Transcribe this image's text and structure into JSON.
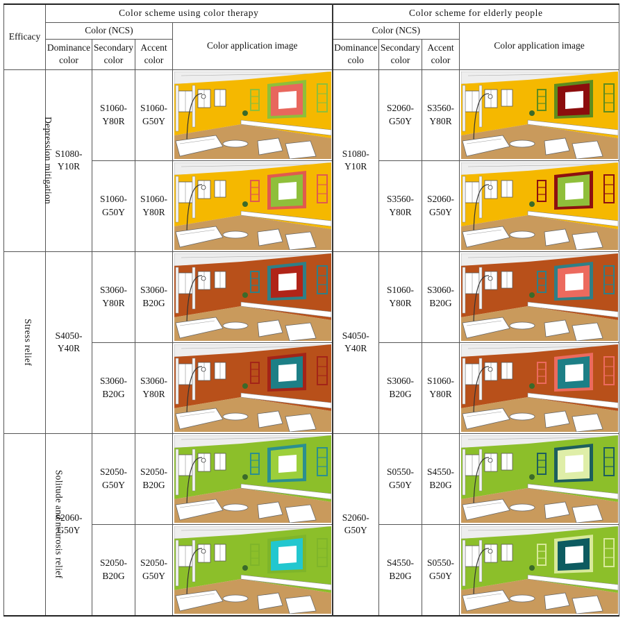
{
  "header": {
    "efficacy": "Efficacy",
    "therapy_group": "Color scheme using color therapy",
    "elderly_group": "Color scheme for elderly people",
    "ncs": "Color (NCS)",
    "app_image": "Color application image",
    "dominance_therapy": "Dominance\ncolor",
    "dominance_elderly": "Dominance\ncolo",
    "secondary": "Secondary\ncolor",
    "accent": "Accent\ncolor"
  },
  "rows": [
    {
      "efficacy": "Depression mitigation",
      "therapy_dominance": "S1080-\nY10R",
      "elderly_dominance": "S1080-\nY10R",
      "subs": [
        {
          "therapy_secondary": "S1060-\nY80R",
          "therapy_accent": "S1060-\nG50Y",
          "therapy_image": {
            "wall": "#f5b800",
            "frame": "#8fbf3a",
            "panel": "#e8675d",
            "floor": "#c99a5c"
          },
          "elderly_secondary": "S2060-\nG50Y",
          "elderly_accent": "S3560-\nY80R",
          "elderly_image": {
            "wall": "#f5b800",
            "frame": "#5e8c1e",
            "panel": "#8c0d0d",
            "floor": "#c99a5c"
          }
        },
        {
          "therapy_secondary": "S1060-\nG50Y",
          "therapy_accent": "S1060-\nY80R",
          "therapy_image": {
            "wall": "#f5b800",
            "frame": "#e05a4e",
            "panel": "#8fbf3a",
            "floor": "#c99a5c"
          },
          "elderly_secondary": "S3560-\nY80R",
          "elderly_accent": "S2060-\nG50Y",
          "elderly_image": {
            "wall": "#f5b800",
            "frame": "#8c1010",
            "panel": "#8fbf3a",
            "floor": "#c99a5c"
          }
        }
      ]
    },
    {
      "efficacy": "Stress relief",
      "therapy_dominance": "S4050-\nY40R",
      "elderly_dominance": "S4050-\nY40R",
      "subs": [
        {
          "therapy_secondary": "S3060-\nY80R",
          "therapy_accent": "S3060-\nB20G",
          "therapy_image": {
            "wall": "#b8501a",
            "frame": "#2f7f86",
            "panel": "#b02418",
            "floor": "#c99a5c"
          },
          "elderly_secondary": "S1060-\nY80R",
          "elderly_accent": "S3060-\nB20G",
          "elderly_image": {
            "wall": "#b8501a",
            "frame": "#2f7f86",
            "panel": "#ec6a5e",
            "floor": "#c99a5c"
          }
        },
        {
          "therapy_secondary": "S3060-\nB20G",
          "therapy_accent": "S3060-\nY80R",
          "therapy_image": {
            "wall": "#b8501a",
            "frame": "#a32418",
            "panel": "#1d7f86",
            "floor": "#c99a5c"
          },
          "elderly_secondary": "S3060-\nB20G",
          "elderly_accent": "S1060-\nY80R",
          "elderly_image": {
            "wall": "#b8501a",
            "frame": "#ec6a5e",
            "panel": "#1d7f86",
            "floor": "#c99a5c"
          }
        }
      ]
    },
    {
      "efficacy": "Solitude and neurosis relief",
      "therapy_dominance": "S2060-\nG50Y",
      "elderly_dominance": "S2060-\nG50Y",
      "subs": [
        {
          "therapy_secondary": "S2050-\nG50Y",
          "therapy_accent": "S2050-\nB20G",
          "therapy_image": {
            "wall": "#8cbf2a",
            "frame": "#2b8f8f",
            "panel": "#9ccf3a",
            "floor": "#c99a5c"
          },
          "elderly_secondary": "S0550-\nG50Y",
          "elderly_accent": "S4550-\nB20G",
          "elderly_image": {
            "wall": "#8cbf2a",
            "frame": "#1d5e5e",
            "panel": "#dfeea8",
            "floor": "#c99a5c"
          }
        },
        {
          "therapy_secondary": "S2050-\nB20G",
          "therapy_accent": "S2050-\nG50Y",
          "therapy_image": {
            "wall": "#8cbf2a",
            "frame": "#7fb52a",
            "panel": "#22c7cf",
            "floor": "#c99a5c"
          },
          "elderly_secondary": "S4550-\nB20G",
          "elderly_accent": "S0550-\nG50Y",
          "elderly_image": {
            "wall": "#8cbf2a",
            "frame": "#d8e99a",
            "panel": "#0d5b60",
            "floor": "#c99a5c"
          }
        }
      ]
    }
  ]
}
